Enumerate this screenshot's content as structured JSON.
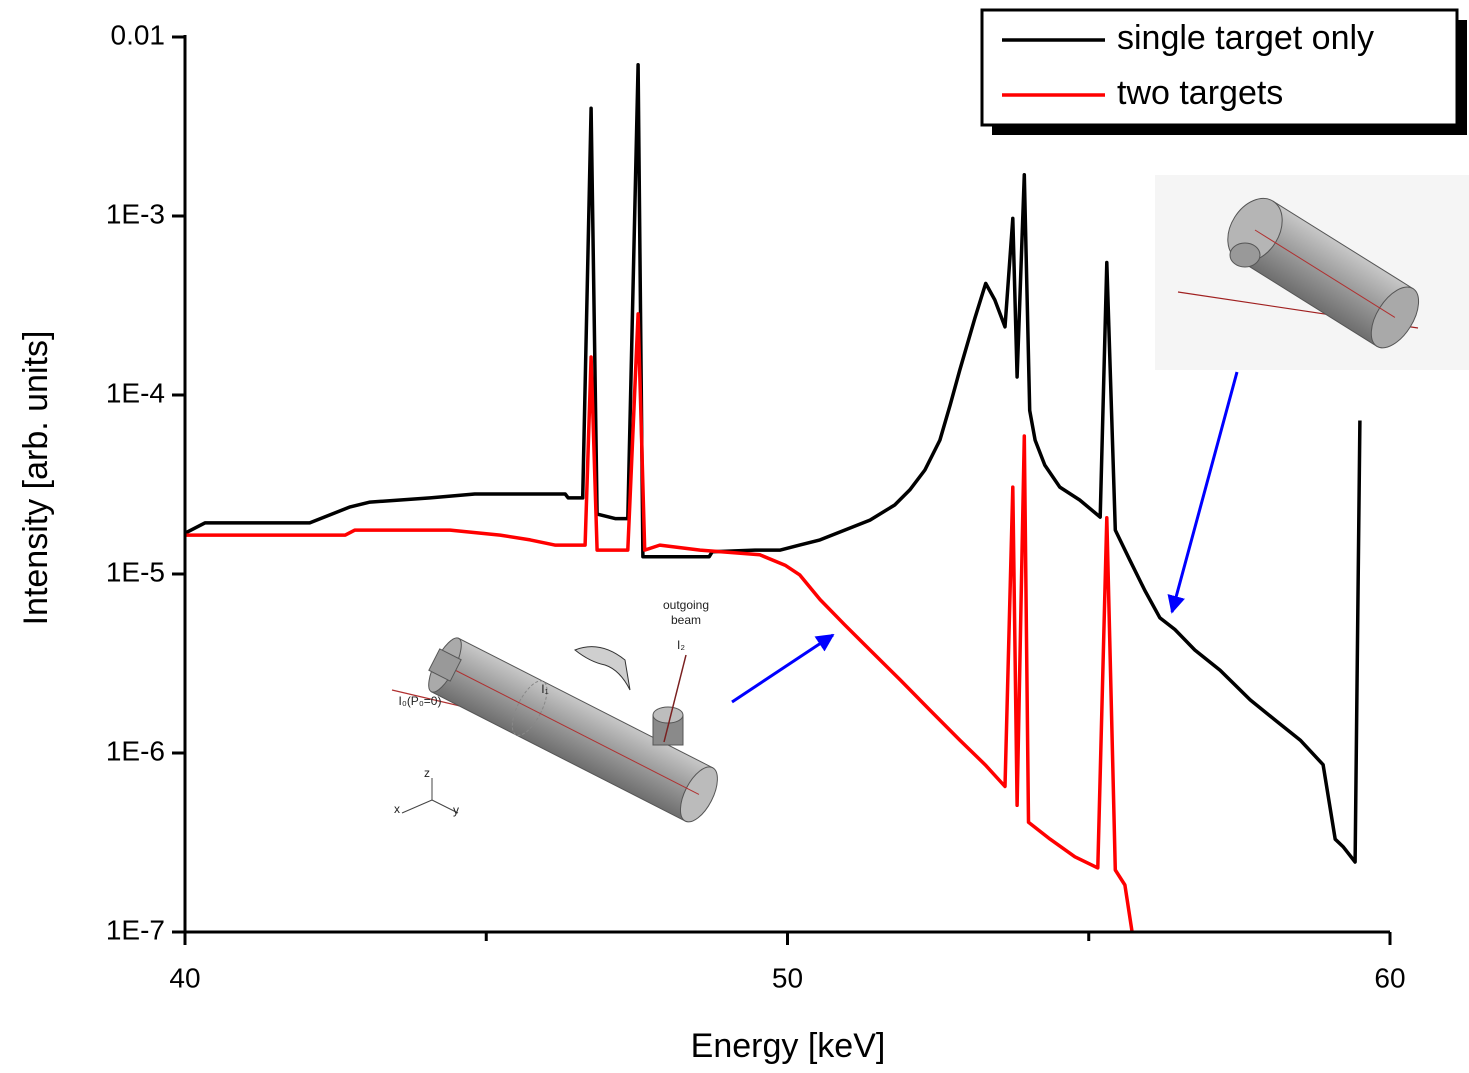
{
  "chart_data": {
    "type": "line",
    "x_label": "Energy [keV]",
    "y_label": "Intensity [arb. units]",
    "log_y": true,
    "xlim": [
      40,
      60
    ],
    "xticks": [
      40,
      50,
      60
    ],
    "xminorticks": [
      45,
      55
    ],
    "ylim": [
      1e-07,
      0.01
    ],
    "yticks": [
      0.01,
      {
        "value": 0.001,
        "label": "1E-3"
      },
      {
        "value": 0.0001,
        "label": "1E-4"
      },
      {
        "value": 1e-05,
        "label": "1E-5"
      },
      {
        "value": 1e-06,
        "label": "1E-6"
      },
      {
        "value": 1e-07,
        "label": "1E-7"
      }
    ],
    "legend": "top-right",
    "series": [
      {
        "name": "single target only",
        "color": "#000000",
        "x": [
          40,
          40.33,
          42.07,
          42.74,
          43.07,
          44.07,
          44.81,
          46.31,
          46.36,
          46.6,
          46.74,
          46.84,
          47.14,
          47.35,
          47.52,
          47.6,
          48.7,
          48.75,
          49.46,
          49.88,
          50.2,
          50.54,
          50.95,
          51.37,
          51.78,
          52.03,
          52.28,
          52.53,
          52.7,
          52.86,
          53.11,
          53.29,
          53.44,
          53.61,
          53.74,
          53.81,
          53.93,
          54.02,
          54.11,
          54.27,
          54.52,
          54.85,
          55.19,
          55.3,
          55.44,
          55.68,
          55.93,
          56.18,
          56.43,
          56.76,
          57.18,
          57.68,
          58.09,
          58.51,
          58.89,
          59.09,
          59.22,
          59.42,
          59.5
        ],
        "values": [
          1.69e-05,
          1.93e-05,
          1.93e-05,
          2.37e-05,
          2.52e-05,
          2.66e-05,
          2.8e-05,
          2.8e-05,
          2.66e-05,
          2.66e-05,
          0.004,
          2.16e-05,
          2.04e-05,
          2.04e-05,
          0.007,
          1.25e-05,
          1.25e-05,
          1.33e-05,
          1.36e-05,
          1.36e-05,
          1.45e-05,
          1.55e-05,
          1.76e-05,
          2e-05,
          2.43e-05,
          2.95e-05,
          3.81e-05,
          5.6e-05,
          8.8e-05,
          0.000138,
          0.000269,
          0.00042,
          0.00034,
          0.00024,
          0.00097,
          0.000126,
          0.0017,
          8.2e-05,
          5.6e-05,
          4.06e-05,
          3.06e-05,
          2.59e-05,
          2.08e-05,
          0.00055,
          1.76e-05,
          1.2e-05,
          8.1e-06,
          5.7e-06,
          4.9e-06,
          3.76e-06,
          2.9e-06,
          1.98e-06,
          1.53e-06,
          1.18e-06,
          8.6e-07,
          3.3e-07,
          3e-07,
          2.46e-07,
          7.2e-05
        ]
      },
      {
        "name": "two targets",
        "color": "#ff0000",
        "x": [
          40,
          41.08,
          42.66,
          42.82,
          43.07,
          44.4,
          45.23,
          45.73,
          46.14,
          46.64,
          46.74,
          46.84,
          47.35,
          47.52,
          47.63,
          47.88,
          48.55,
          49.54,
          49.96,
          50.2,
          50.54,
          50.95,
          51.37,
          51.87,
          52.36,
          52.86,
          53.28,
          53.61,
          53.74,
          53.81,
          53.93,
          54.0,
          54.36,
          54.77,
          55.15,
          55.3,
          55.44,
          55.6,
          55.72
        ],
        "values": [
          1.65e-05,
          1.65e-05,
          1.65e-05,
          1.76e-05,
          1.76e-05,
          1.76e-05,
          1.65e-05,
          1.55e-05,
          1.45e-05,
          1.45e-05,
          0.000163,
          1.36e-05,
          1.36e-05,
          0.000284,
          1.36e-05,
          1.45e-05,
          1.36e-05,
          1.28e-05,
          1.12e-05,
          9.9e-06,
          7.2e-06,
          5.2e-06,
          3.76e-06,
          2.56e-06,
          1.74e-06,
          1.18e-06,
          8.6e-07,
          6.5e-07,
          3.06e-05,
          5.1e-07,
          5.9e-05,
          4.1e-07,
          3.3e-07,
          2.63e-07,
          2.28e-07,
          2.06e-05,
          2.22e-07,
          1.83e-07,
          1e-07
        ]
      }
    ],
    "inset_labels": [
      "outgoing",
      "beam",
      "I₂",
      "I₁",
      "I₀(P₀=0)",
      "z",
      "x",
      "y"
    ]
  }
}
